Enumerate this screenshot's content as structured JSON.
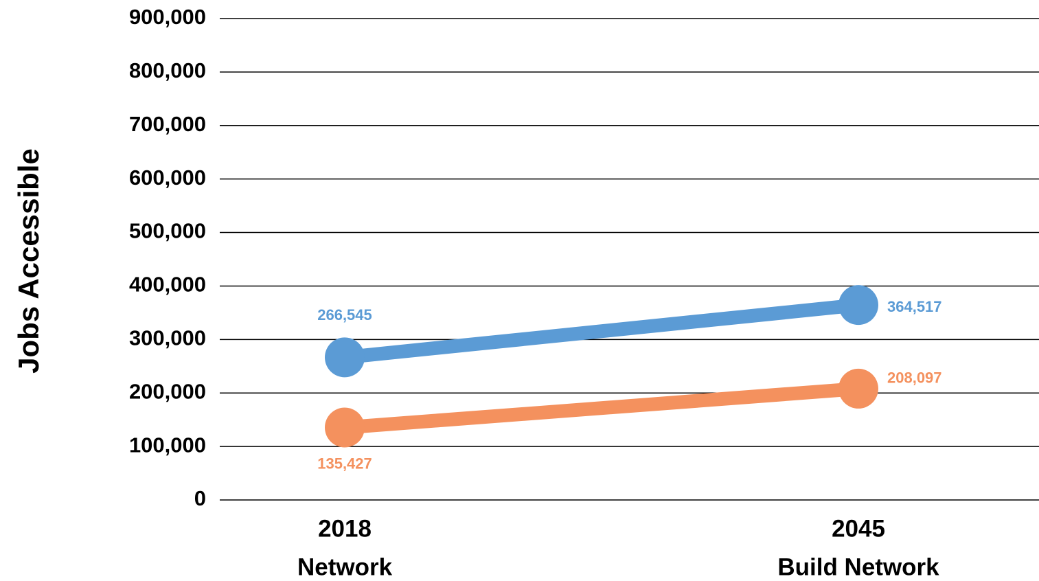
{
  "chart_data": {
    "type": "line",
    "y_label": "Jobs Accessible",
    "categories": [
      [
        "2018",
        "Network"
      ],
      [
        "2045",
        "Build Network"
      ]
    ],
    "series": [
      {
        "color": "#5b9bd5",
        "values": [
          266545,
          364517
        ],
        "value_labels": [
          "266,545",
          "364,517"
        ]
      },
      {
        "color": "#f4915e",
        "values": [
          135427,
          208097
        ],
        "value_labels": [
          "135,427",
          "208,097"
        ]
      }
    ],
    "ylim": [
      0,
      900000
    ],
    "yticks": [
      0,
      {
        "value": 100000,
        "label": "100,000"
      },
      {
        "value": 200000,
        "label": "200,000"
      },
      {
        "value": 300000,
        "label": "300,000"
      },
      {
        "value": 400000,
        "label": "400,000"
      },
      {
        "value": 500000,
        "label": "500,000"
      },
      {
        "value": 600000,
        "label": "600,000"
      },
      {
        "value": 700000,
        "label": "700,000"
      },
      {
        "value": 800000,
        "label": "800,000"
      },
      {
        "value": 900000,
        "label": "900,000"
      }
    ],
    "grid": true
  }
}
